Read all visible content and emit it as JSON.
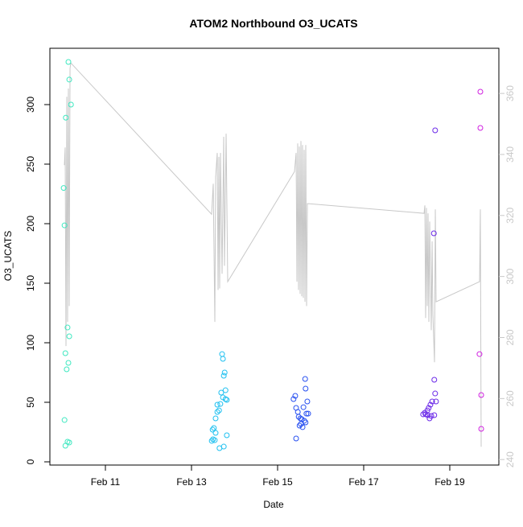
{
  "chart_data": {
    "type": "scatter",
    "title": "ATOM2 Northbound O3_UCATS",
    "x_label": "Date",
    "y_label": "O3_UCATS",
    "xlim": [
      9.71,
      20.14
    ],
    "ylim": [
      -2.7,
      347.3
    ],
    "y2lim": [
      238.2,
      374.8
    ],
    "xticks": [
      {
        "value": 11,
        "label": "Feb 11"
      },
      {
        "value": 13,
        "label": "Feb 13"
      },
      {
        "value": 15,
        "label": "Feb 15"
      },
      {
        "value": 17,
        "label": "Feb 17"
      },
      {
        "value": 19,
        "label": "Feb 19"
      }
    ],
    "yticks": [
      0,
      50,
      100,
      150,
      200,
      250,
      300
    ],
    "y2ticks": [
      240,
      260,
      280,
      300,
      320,
      340,
      360
    ],
    "y2_color": "#c8c8c8",
    "series": [
      {
        "type": "scatter",
        "color": "#3ee8c0",
        "x": [
          10.14,
          10.16,
          10.2,
          10.08,
          10.03,
          10.05,
          10.12,
          10.16,
          10.07,
          10.14,
          10.1,
          10.05,
          10.12,
          10.16,
          10.07
        ],
        "values": [
          335.8,
          321,
          300,
          289,
          230,
          198.6,
          112.8,
          105.4,
          91.2,
          83.1,
          77.7,
          35.1,
          16.9,
          16.2,
          13.5
        ]
      },
      {
        "type": "scatter",
        "color": "#1ec0f0",
        "x": [
          13.71,
          13.73,
          13.77,
          13.75,
          13.79,
          13.69,
          13.73,
          13.82,
          13.79,
          13.67,
          13.6,
          13.64,
          13.6,
          13.56,
          13.52,
          13.49,
          13.56,
          13.82,
          13.5,
          13.54,
          13.47,
          13.75,
          13.65
        ],
        "values": [
          90.5,
          86.5,
          75,
          72.3,
          60.1,
          58.1,
          54.1,
          52,
          52.7,
          48.6,
          48,
          43.2,
          41.9,
          36.5,
          28.4,
          27,
          24.3,
          22.3,
          18.9,
          18.2,
          17.6,
          12.8,
          11.5
        ]
      },
      {
        "type": "scatter",
        "color": "#2850f0",
        "x": [
          15.41,
          15.37,
          15.64,
          15.65,
          15.69,
          15.6,
          15.43,
          15.47,
          15.67,
          15.71,
          15.49,
          15.53,
          15.56,
          15.62,
          15.65,
          15.54,
          15.51,
          15.58,
          15.43
        ],
        "values": [
          55.4,
          52.7,
          69.6,
          61.5,
          50.7,
          45.9,
          45.3,
          41.9,
          40.5,
          40.5,
          37.8,
          36.5,
          35.8,
          34.5,
          33.1,
          31.8,
          30.4,
          29.1,
          19.6
        ]
      },
      {
        "type": "scatter",
        "color": "#6a28e8",
        "x": [
          18.66,
          18.63,
          18.64,
          18.66,
          18.68,
          18.59,
          18.55,
          18.51,
          18.48,
          18.42,
          18.38,
          18.44,
          18.49,
          18.57,
          18.64,
          18.53
        ],
        "values": [
          278.4,
          191.9,
          68.9,
          57.4,
          50.7,
          50.7,
          48,
          45.3,
          43.2,
          41.2,
          39.9,
          39.9,
          39.2,
          38.5,
          39.2,
          36.5
        ]
      },
      {
        "type": "scatter",
        "color": "#d020e0",
        "x": [
          19.71,
          19.71,
          19.69,
          19.73,
          19.73
        ],
        "values": [
          310.8,
          280.4,
          90.5,
          56.1,
          27.7
        ]
      },
      {
        "type": "line",
        "axis": "y2",
        "color": "#c8c8c8",
        "x": [
          10.047,
          10.065,
          10.084,
          10.103,
          10.121,
          10.14,
          10.159,
          10.178,
          10.196,
          13.467,
          13.505,
          13.542,
          13.561,
          13.598,
          13.617,
          13.636,
          13.654,
          13.673,
          13.71,
          13.748,
          13.766,
          13.804,
          13.841,
          15.393,
          15.43,
          15.449,
          15.467,
          15.486,
          15.505,
          15.523,
          15.542,
          15.561,
          15.579,
          15.598,
          15.617,
          15.636,
          15.654,
          15.673,
          15.692,
          18.402,
          18.421,
          18.439,
          18.458,
          18.477,
          18.495,
          18.514,
          18.533,
          18.57,
          18.589,
          18.607,
          18.645,
          18.664,
          18.682,
          19.692,
          19.71,
          19.729
        ],
        "values": [
          336.5,
          342.3,
          277.2,
          358.9,
          285.1,
          361.6,
          290.3,
          368.2,
          370.0,
          320.4,
          330.4,
          285.1,
          332.6,
          340.5,
          295.6,
          339.2,
          296.1,
          340.5,
          300.9,
          345.8,
          303.5,
          346.8,
          298.3,
          334.4,
          340.5,
          298.3,
          343.6,
          295.6,
          342.6,
          294.3,
          344.4,
          293.5,
          343.1,
          293.0,
          341.5,
          291.7,
          343.1,
          290.3,
          323.9,
          320.7,
          323.3,
          286.4,
          322.5,
          290.3,
          320.7,
          285.1,
          318.0,
          282.4,
          311.5,
          287.7,
          271.9,
          322.0,
          291.7,
          298.3,
          322.0,
          244.2
        ]
      }
    ]
  }
}
